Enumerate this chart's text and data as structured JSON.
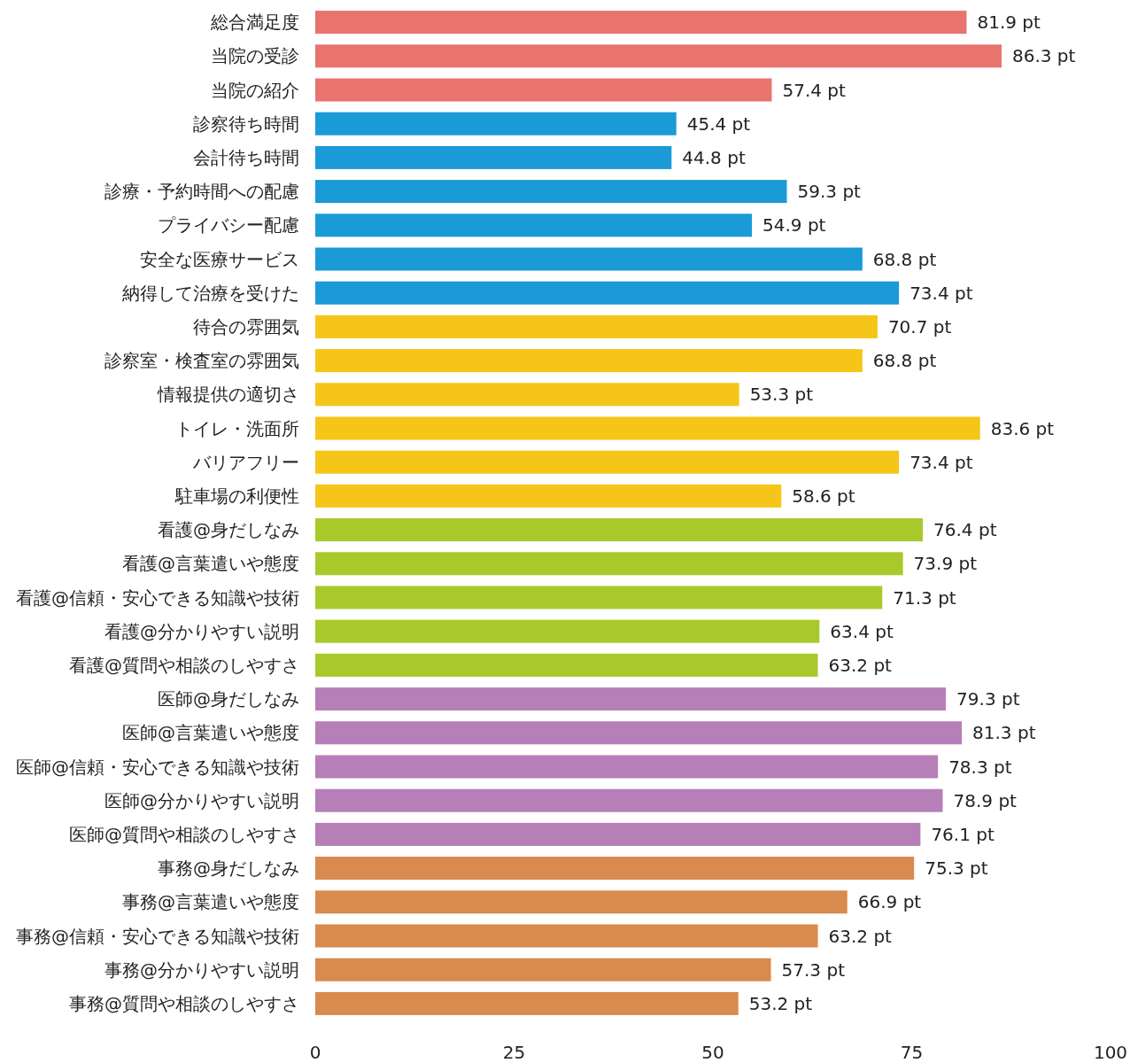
{
  "chart_data": {
    "type": "bar",
    "orientation": "horizontal",
    "categories": [
      "総合満足度",
      "当院の受診",
      "当院の紹介",
      "診察待ち時間",
      "会計待ち時間",
      "診療・予約時間への配慮",
      "プライバシー配慮",
      "安全な医療サービス",
      "納得して治療を受けた",
      "待合の雰囲気",
      "診察室・検査室の雰囲気",
      "情報提供の適切さ",
      "トイレ・洗面所",
      "バリアフリー",
      "駐車場の利便性",
      "看護@身だしなみ",
      "看護@言葉遣いや態度",
      "看護@信頼・安心できる知識や技術",
      "看護@分かりやすい説明",
      "看護@質問や相談のしやすさ",
      "医師@身だしなみ",
      "医師@言葉遣いや態度",
      "医師@信頼・安心できる知識や技術",
      "医師@分かりやすい説明",
      "医師@質問や相談のしやすさ",
      "事務@身だしなみ",
      "事務@言葉遣いや態度",
      "事務@信頼・安心できる知識や技術",
      "事務@分かりやすい説明",
      "事務@質問や相談のしやすさ"
    ],
    "values": [
      81.9,
      86.3,
      57.4,
      45.4,
      44.8,
      59.3,
      54.9,
      68.8,
      73.4,
      70.7,
      68.8,
      53.3,
      83.6,
      73.4,
      58.6,
      76.4,
      73.9,
      71.3,
      63.4,
      63.2,
      79.3,
      81.3,
      78.3,
      78.9,
      76.1,
      75.3,
      66.9,
      63.2,
      57.3,
      53.2
    ],
    "value_labels": [
      "81.9 pt",
      "86.3 pt",
      "57.4 pt",
      "45.4 pt",
      "44.8 pt",
      "59.3 pt",
      "54.9 pt",
      "68.8 pt",
      "73.4 pt",
      "70.7 pt",
      "68.8 pt",
      "53.3 pt",
      "83.6 pt",
      "73.4 pt",
      "58.6 pt",
      "76.4 pt",
      "73.9 pt",
      "71.3 pt",
      "63.4 pt",
      "63.2 pt",
      "79.3 pt",
      "81.3 pt",
      "78.3 pt",
      "78.9 pt",
      "76.1 pt",
      "75.3 pt",
      "66.9 pt",
      "63.2 pt",
      "57.3 pt",
      "53.2 pt"
    ],
    "colors": [
      "#e8736f",
      "#e8736f",
      "#e8736f",
      "#1a9ad6",
      "#1a9ad6",
      "#1a9ad6",
      "#1a9ad6",
      "#1a9ad6",
      "#1a9ad6",
      "#f5c518",
      "#f5c518",
      "#f5c518",
      "#f5c518",
      "#f5c518",
      "#f5c518",
      "#a8c92a",
      "#a8c92a",
      "#a8c92a",
      "#a8c92a",
      "#a8c92a",
      "#b67fb8",
      "#b67fb8",
      "#b67fb8",
      "#b67fb8",
      "#b67fb8",
      "#d98a4e",
      "#d98a4e",
      "#d98a4e",
      "#d98a4e",
      "#d98a4e"
    ],
    "xlim": [
      0,
      100
    ],
    "xticks": [
      0,
      25,
      50,
      75,
      100
    ]
  }
}
